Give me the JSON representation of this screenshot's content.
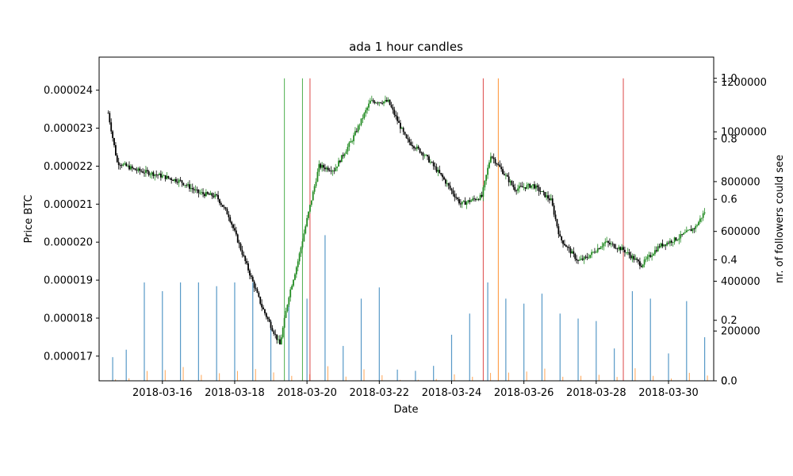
{
  "chart_data": {
    "type": "candlestick",
    "title": "ada 1 hour candles",
    "xlabel": "Date",
    "ylabel": "Price BTC",
    "ylabel_right": "nr. of followers could see",
    "x_ticks": [
      "2018-03-16",
      "2018-03-18",
      "2018-03-20",
      "2018-03-22",
      "2018-03-24",
      "2018-03-26",
      "2018-03-28",
      "2018-03-30"
    ],
    "y_ticks": [
      "0.000017",
      "0.000018",
      "0.000019",
      "0.000020",
      "0.000021",
      "0.000022",
      "0.000023",
      "0.000024"
    ],
    "y_ticks_right_followers": [
      "0",
      "200000",
      "400000",
      "600000",
      "800000",
      "1000000",
      "1200000"
    ],
    "y_ticks_right_fraction": [
      "0.0",
      "0.2",
      "0.4",
      "0.6",
      "0.8",
      "1.0"
    ],
    "x_range": [
      "2018-03-14 06:00",
      "2018-03-31 06:00"
    ],
    "ylim": [
      1.635e-05,
      2.487e-05
    ],
    "ylim_right_followers": [
      0,
      1300000
    ],
    "ylim_right_fraction": [
      0,
      1.07
    ],
    "colors": {
      "up": "#228b22",
      "down": "#000000",
      "followers": "#1f77b4",
      "followers_alt": "#ff7f0e",
      "signal_buy": "#2ca02c",
      "signal_sell": "#d62728"
    },
    "price_path": [
      {
        "t": "2018-03-14 12:00",
        "price": 2.34e-05
      },
      {
        "t": "2018-03-14 18:00",
        "price": 2.21e-05
      },
      {
        "t": "2018-03-15 06:00",
        "price": 2.19e-05
      },
      {
        "t": "2018-03-15 18:00",
        "price": 2.18e-05
      },
      {
        "t": "2018-03-16 12:00",
        "price": 2.16e-05
      },
      {
        "t": "2018-03-17 00:00",
        "price": 2.13e-05
      },
      {
        "t": "2018-03-17 12:00",
        "price": 2.12e-05
      },
      {
        "t": "2018-03-17 20:00",
        "price": 2.07e-05
      },
      {
        "t": "2018-03-18 06:00",
        "price": 1.96e-05
      },
      {
        "t": "2018-03-18 18:00",
        "price": 1.83e-05
      },
      {
        "t": "2018-03-19 06:00",
        "price": 1.73e-05
      },
      {
        "t": "2018-03-19 12:00",
        "price": 1.86e-05
      },
      {
        "t": "2018-03-19 18:00",
        "price": 1.95e-05
      },
      {
        "t": "2018-03-20 00:00",
        "price": 2.06e-05
      },
      {
        "t": "2018-03-20 08:00",
        "price": 2.2e-05
      },
      {
        "t": "2018-03-20 18:00",
        "price": 2.19e-05
      },
      {
        "t": "2018-03-21 06:00",
        "price": 2.27e-05
      },
      {
        "t": "2018-03-21 18:00",
        "price": 2.37e-05
      },
      {
        "t": "2018-03-22 06:00",
        "price": 2.37e-05
      },
      {
        "t": "2018-03-22 18:00",
        "price": 2.27e-05
      },
      {
        "t": "2018-03-23 06:00",
        "price": 2.23e-05
      },
      {
        "t": "2018-03-23 18:00",
        "price": 2.17e-05
      },
      {
        "t": "2018-03-24 06:00",
        "price": 2.1e-05
      },
      {
        "t": "2018-03-24 20:00",
        "price": 2.12e-05
      },
      {
        "t": "2018-03-25 02:00",
        "price": 2.23e-05
      },
      {
        "t": "2018-03-25 18:00",
        "price": 2.14e-05
      },
      {
        "t": "2018-03-26 06:00",
        "price": 2.15e-05
      },
      {
        "t": "2018-03-26 18:00",
        "price": 2.11e-05
      },
      {
        "t": "2018-03-27 00:00",
        "price": 2.01e-05
      },
      {
        "t": "2018-03-27 12:00",
        "price": 1.95e-05
      },
      {
        "t": "2018-03-27 18:00",
        "price": 1.96e-05
      },
      {
        "t": "2018-03-28 06:00",
        "price": 2e-05
      },
      {
        "t": "2018-03-28 18:00",
        "price": 1.98e-05
      },
      {
        "t": "2018-03-29 06:00",
        "price": 1.94e-05
      },
      {
        "t": "2018-03-29 18:00",
        "price": 1.99e-05
      },
      {
        "t": "2018-03-30 06:00",
        "price": 2.01e-05
      },
      {
        "t": "2018-03-30 18:00",
        "price": 2.04e-05
      },
      {
        "t": "2018-03-31 00:00",
        "price": 2.08e-05
      }
    ],
    "signals": [
      {
        "t": "2018-03-19 09:00",
        "kind": "buy"
      },
      {
        "t": "2018-03-19 21:00",
        "kind": "buy"
      },
      {
        "t": "2018-03-20 02:00",
        "kind": "sell"
      },
      {
        "t": "2018-03-24 21:00",
        "kind": "sell"
      },
      {
        "t": "2018-03-25 07:00",
        "kind": "followers_alt"
      },
      {
        "t": "2018-03-28 18:00",
        "kind": "sell"
      }
    ],
    "followers_bars": [
      {
        "t": "2018-03-14 15:00",
        "followers": 95000
      },
      {
        "t": "2018-03-15 00:00",
        "followers": 125000
      },
      {
        "t": "2018-03-15 12:00",
        "followers": 395000
      },
      {
        "t": "2018-03-16 00:00",
        "followers": 360000
      },
      {
        "t": "2018-03-16 12:00",
        "followers": 395000
      },
      {
        "t": "2018-03-17 00:00",
        "followers": 395000
      },
      {
        "t": "2018-03-17 12:00",
        "followers": 380000
      },
      {
        "t": "2018-03-18 00:00",
        "followers": 395000
      },
      {
        "t": "2018-03-18 12:00",
        "followers": 395000
      },
      {
        "t": "2018-03-19 00:00",
        "followers": 240000
      },
      {
        "t": "2018-03-19 12:00",
        "followers": 330000
      },
      {
        "t": "2018-03-20 00:00",
        "followers": 330000
      },
      {
        "t": "2018-03-20 12:00",
        "followers": 585000
      },
      {
        "t": "2018-03-21 00:00",
        "followers": 140000
      },
      {
        "t": "2018-03-21 12:00",
        "followers": 330000
      },
      {
        "t": "2018-03-22 00:00",
        "followers": 375000
      },
      {
        "t": "2018-03-22 12:00",
        "followers": 45000
      },
      {
        "t": "2018-03-23 00:00",
        "followers": 40000
      },
      {
        "t": "2018-03-23 12:00",
        "followers": 60000
      },
      {
        "t": "2018-03-24 00:00",
        "followers": 185000
      },
      {
        "t": "2018-03-24 12:00",
        "followers": 270000
      },
      {
        "t": "2018-03-25 00:00",
        "followers": 395000
      },
      {
        "t": "2018-03-25 12:00",
        "followers": 330000
      },
      {
        "t": "2018-03-26 00:00",
        "followers": 310000
      },
      {
        "t": "2018-03-26 12:00",
        "followers": 350000
      },
      {
        "t": "2018-03-27 00:00",
        "followers": 270000
      },
      {
        "t": "2018-03-27 12:00",
        "followers": 250000
      },
      {
        "t": "2018-03-28 00:00",
        "followers": 240000
      },
      {
        "t": "2018-03-28 12:00",
        "followers": 130000
      },
      {
        "t": "2018-03-29 00:00",
        "followers": 360000
      },
      {
        "t": "2018-03-29 12:00",
        "followers": 330000
      },
      {
        "t": "2018-03-30 00:00",
        "followers": 110000
      },
      {
        "t": "2018-03-30 12:00",
        "followers": 320000
      },
      {
        "t": "2018-03-31 00:00",
        "followers": 175000
      }
    ]
  }
}
